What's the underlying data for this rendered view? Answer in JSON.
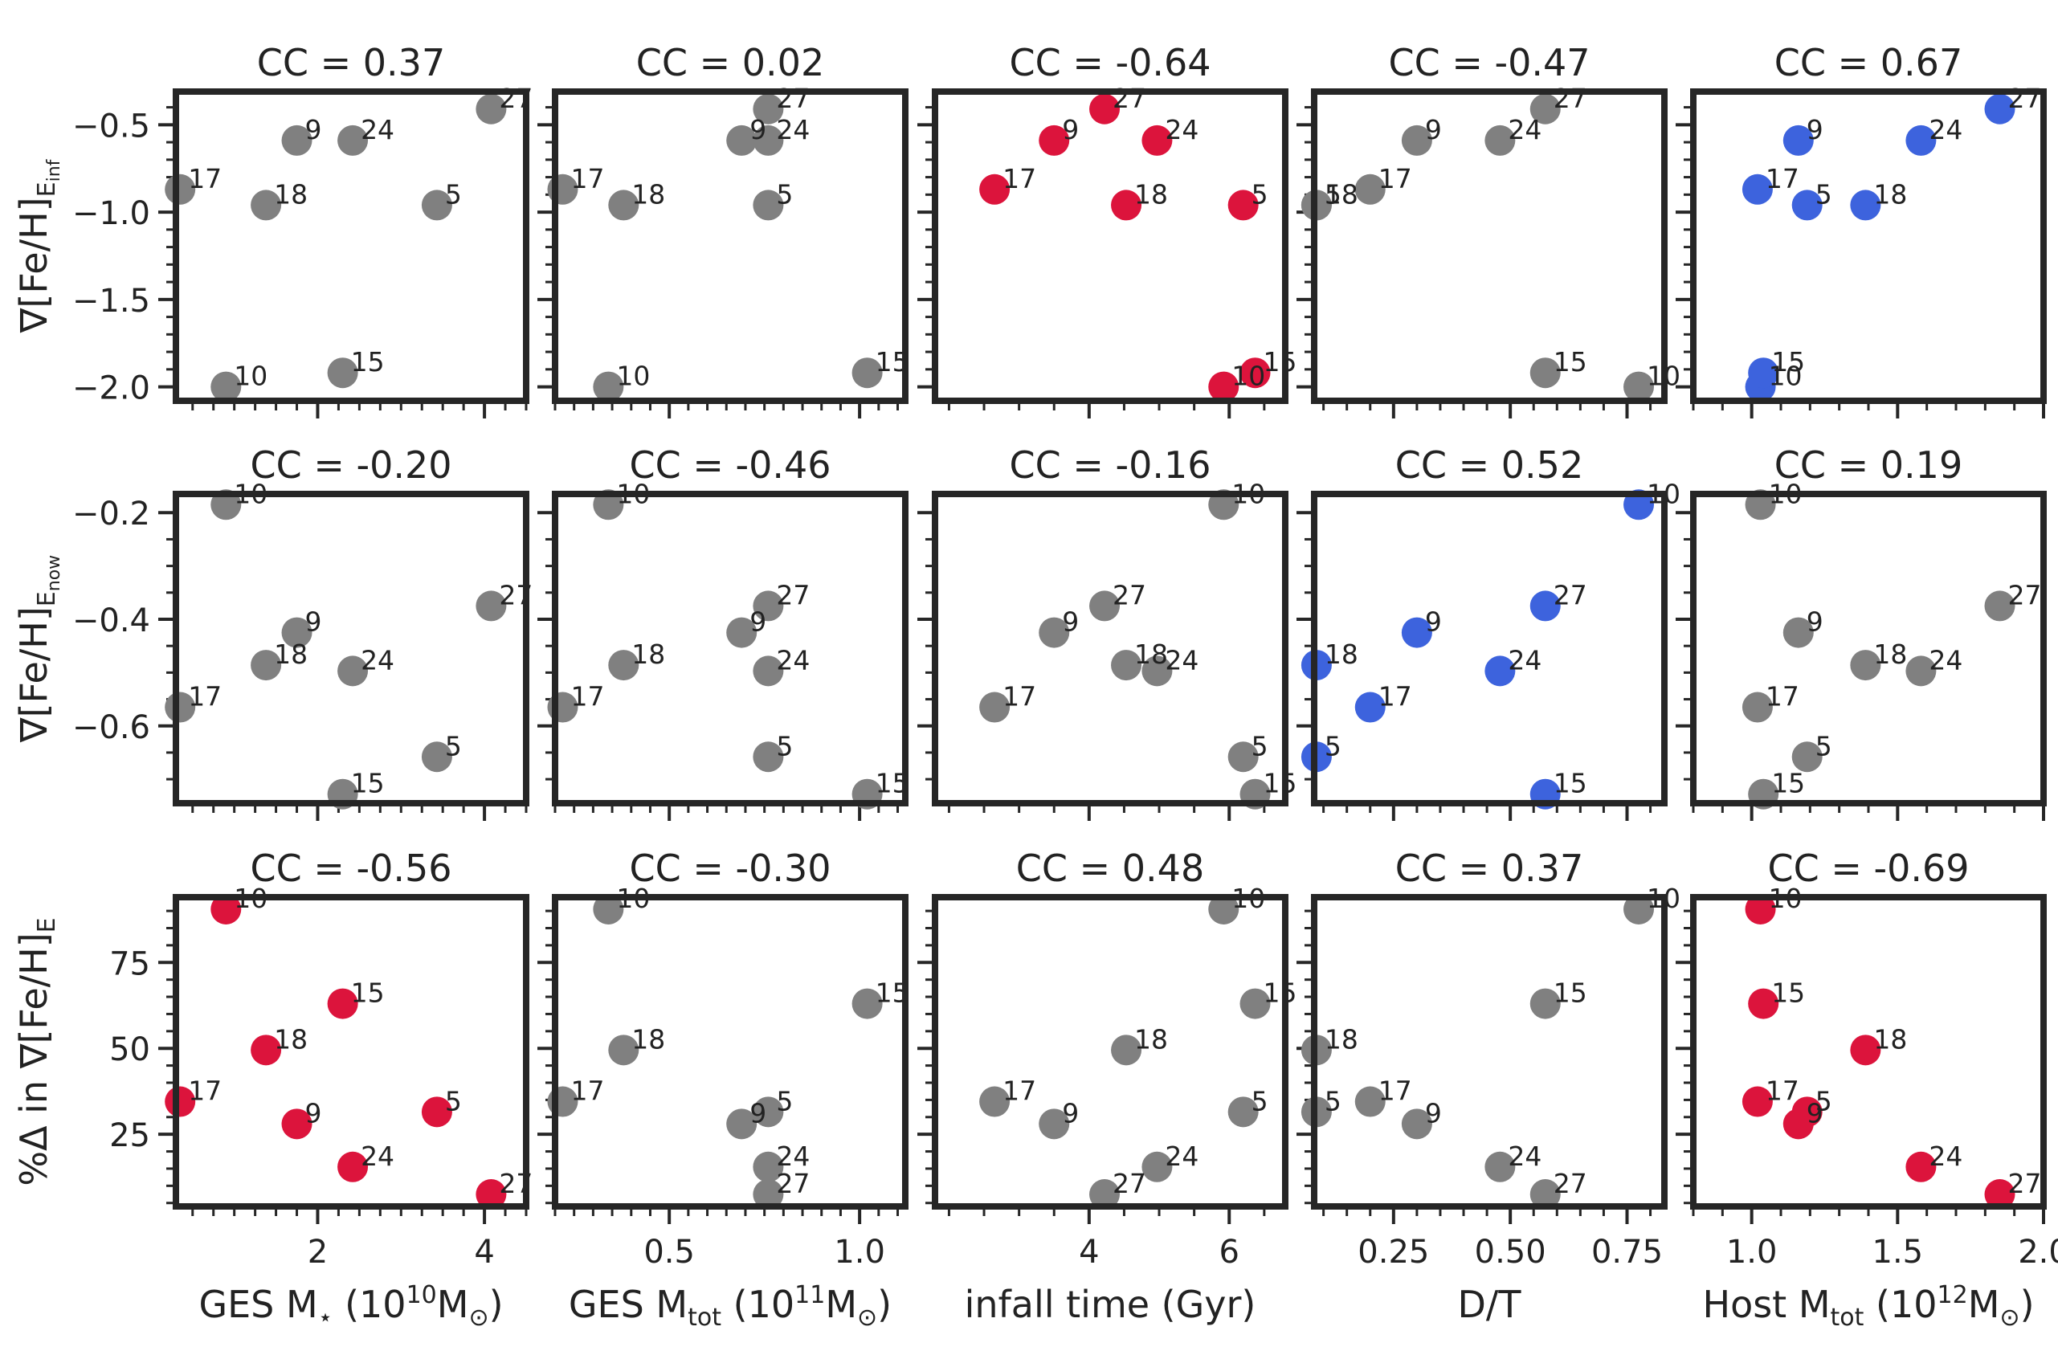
{
  "chart_data": {
    "type": "scatter",
    "layout": "3x5 grid of scatter panels",
    "colors": {
      "neutral": "#808080",
      "positive": "#3d63dd",
      "negative": "#dc143c",
      "frame": "#262626",
      "text": "#222222"
    },
    "columns": [
      {
        "key": "ges_mstar",
        "xlabel": {
          "main": "GES M",
          "sub": "⋆",
          "tail": " (10",
          "sup": "10",
          "tail2": "M",
          "sub2": "⊙",
          "tail3": ")"
        },
        "xlim": [
          0.3,
          4.5
        ],
        "xticks": [
          2,
          4
        ],
        "xtick_labels": [
          "2",
          "4"
        ],
        "xminor": 0.25
      },
      {
        "key": "ges_mtot",
        "xlabel": {
          "main": "GES M",
          "sub": "tot",
          "tail": " (10",
          "sup": "11",
          "tail2": "M",
          "sub2": "⊙",
          "tail3": ")"
        },
        "xlim": [
          0.2,
          1.12
        ],
        "xticks": [
          0.5,
          1.0
        ],
        "xtick_labels": [
          "0.5",
          "1.0"
        ],
        "xminor": 0.05
      },
      {
        "key": "infall_time",
        "xlabel": {
          "main": "infall time (Gyr)"
        },
        "xlim": [
          1.8,
          6.8
        ],
        "xticks": [
          4,
          6
        ],
        "xtick_labels": [
          "4",
          "6"
        ],
        "xminor": 0.5
      },
      {
        "key": "dt",
        "xlabel": {
          "main": "D/T"
        },
        "xlim": [
          0.08,
          0.83
        ],
        "xticks": [
          0.25,
          0.5,
          0.75
        ],
        "xtick_labels": [
          "0.25",
          "0.50",
          "0.75"
        ],
        "xminor": 0.05
      },
      {
        "key": "host_mtot",
        "xlabel": {
          "main": "Host M",
          "sub": "tot",
          "tail": " (10",
          "sup": "12",
          "tail2": "M",
          "sub2": "⊙",
          "tail3": ")"
        },
        "xlim": [
          0.8,
          2.0
        ],
        "xticks": [
          1.0,
          1.5,
          2.0
        ],
        "xtick_labels": [
          "1.0",
          "1.5",
          "2.0"
        ],
        "xminor": 0.1
      }
    ],
    "rows": [
      {
        "key": "grad_inf",
        "ylabel": {
          "main": "∇[Fe/H]",
          "sub": "E",
          "subsub": "inf"
        },
        "ylim": [
          -2.08,
          -0.31
        ],
        "yticks": [
          -0.5,
          -1.0,
          -1.5,
          -2.0
        ],
        "ytick_labels": [
          "−0.5",
          "−1.0",
          "−1.5",
          "−2.0"
        ],
        "yminor": 0.1
      },
      {
        "key": "grad_now",
        "ylabel": {
          "main": "∇[Fe/H]",
          "sub": "E",
          "subsub": "now"
        },
        "ylim": [
          -0.745,
          -0.165
        ],
        "yticks": [
          -0.2,
          -0.4,
          -0.6
        ],
        "ytick_labels": [
          "−0.2",
          "−0.4",
          "−0.6"
        ],
        "yminor": 0.05
      },
      {
        "key": "pct_delta",
        "ylabel": {
          "main": "%Δ in ∇[Fe/H]",
          "sub": "E"
        },
        "ylim": [
          4,
          94
        ],
        "yticks": [
          25,
          50,
          75
        ],
        "ytick_labels": [
          "25",
          "50",
          "75"
        ],
        "yminor": 5
      }
    ],
    "panels": [
      {
        "title": "CC = 0.37",
        "highlight": "neutral"
      },
      {
        "title": "CC = 0.02",
        "highlight": "neutral"
      },
      {
        "title": "CC = -0.64",
        "highlight": "negative"
      },
      {
        "title": "CC = -0.47",
        "highlight": "neutral"
      },
      {
        "title": "CC = 0.67",
        "highlight": "positive"
      },
      {
        "title": "CC = -0.20",
        "highlight": "neutral"
      },
      {
        "title": "CC = -0.46",
        "highlight": "neutral"
      },
      {
        "title": "CC = -0.16",
        "highlight": "neutral"
      },
      {
        "title": "CC = 0.52",
        "highlight": "positive"
      },
      {
        "title": "CC = 0.19",
        "highlight": "neutral"
      },
      {
        "title": "CC = -0.56",
        "highlight": "negative"
      },
      {
        "title": "CC = -0.30",
        "highlight": "neutral"
      },
      {
        "title": "CC = 0.48",
        "highlight": "neutral"
      },
      {
        "title": "CC = 0.37",
        "highlight": "neutral"
      },
      {
        "title": "CC = -0.69",
        "highlight": "negative"
      }
    ],
    "halos": [
      {
        "id": "27",
        "ges_mstar": 4.08,
        "ges_mtot": 0.76,
        "infall_time": 4.22,
        "dt": 0.575,
        "host_mtot": 1.85,
        "grad_inf": -0.41,
        "grad_now": -0.375,
        "pct_delta": 7.5
      },
      {
        "id": "9",
        "ges_mstar": 1.75,
        "ges_mtot": 0.69,
        "infall_time": 3.5,
        "dt": 0.3,
        "host_mtot": 1.16,
        "grad_inf": -0.59,
        "grad_now": -0.425,
        "pct_delta": 28
      },
      {
        "id": "24",
        "ges_mstar": 2.42,
        "ges_mtot": 0.76,
        "infall_time": 4.97,
        "dt": 0.478,
        "host_mtot": 1.58,
        "grad_inf": -0.59,
        "grad_now": -0.497,
        "pct_delta": 15.5
      },
      {
        "id": "17",
        "ges_mstar": 0.35,
        "ges_mtot": 0.22,
        "infall_time": 2.65,
        "dt": 0.2,
        "host_mtot": 1.02,
        "grad_inf": -0.87,
        "grad_now": -0.565,
        "pct_delta": 34.5
      },
      {
        "id": "18",
        "ges_mstar": 1.38,
        "ges_mtot": 0.38,
        "infall_time": 4.53,
        "dt": 0.085,
        "host_mtot": 1.39,
        "grad_inf": -0.96,
        "grad_now": -0.486,
        "pct_delta": 49.5
      },
      {
        "id": "5",
        "ges_mstar": 3.43,
        "ges_mtot": 0.76,
        "infall_time": 6.2,
        "dt": 0.085,
        "host_mtot": 1.19,
        "grad_inf": -0.96,
        "grad_now": -0.658,
        "pct_delta": 31.5
      },
      {
        "id": "10",
        "ges_mstar": 0.9,
        "ges_mtot": 0.34,
        "infall_time": 5.92,
        "dt": 0.775,
        "host_mtot": 1.03,
        "grad_inf": -2.0,
        "grad_now": -0.185,
        "pct_delta": 90.5
      },
      {
        "id": "15",
        "ges_mstar": 2.3,
        "ges_mtot": 1.02,
        "infall_time": 6.37,
        "dt": 0.575,
        "host_mtot": 1.04,
        "grad_inf": -1.92,
        "grad_now": -0.728,
        "pct_delta": 63
      }
    ]
  }
}
